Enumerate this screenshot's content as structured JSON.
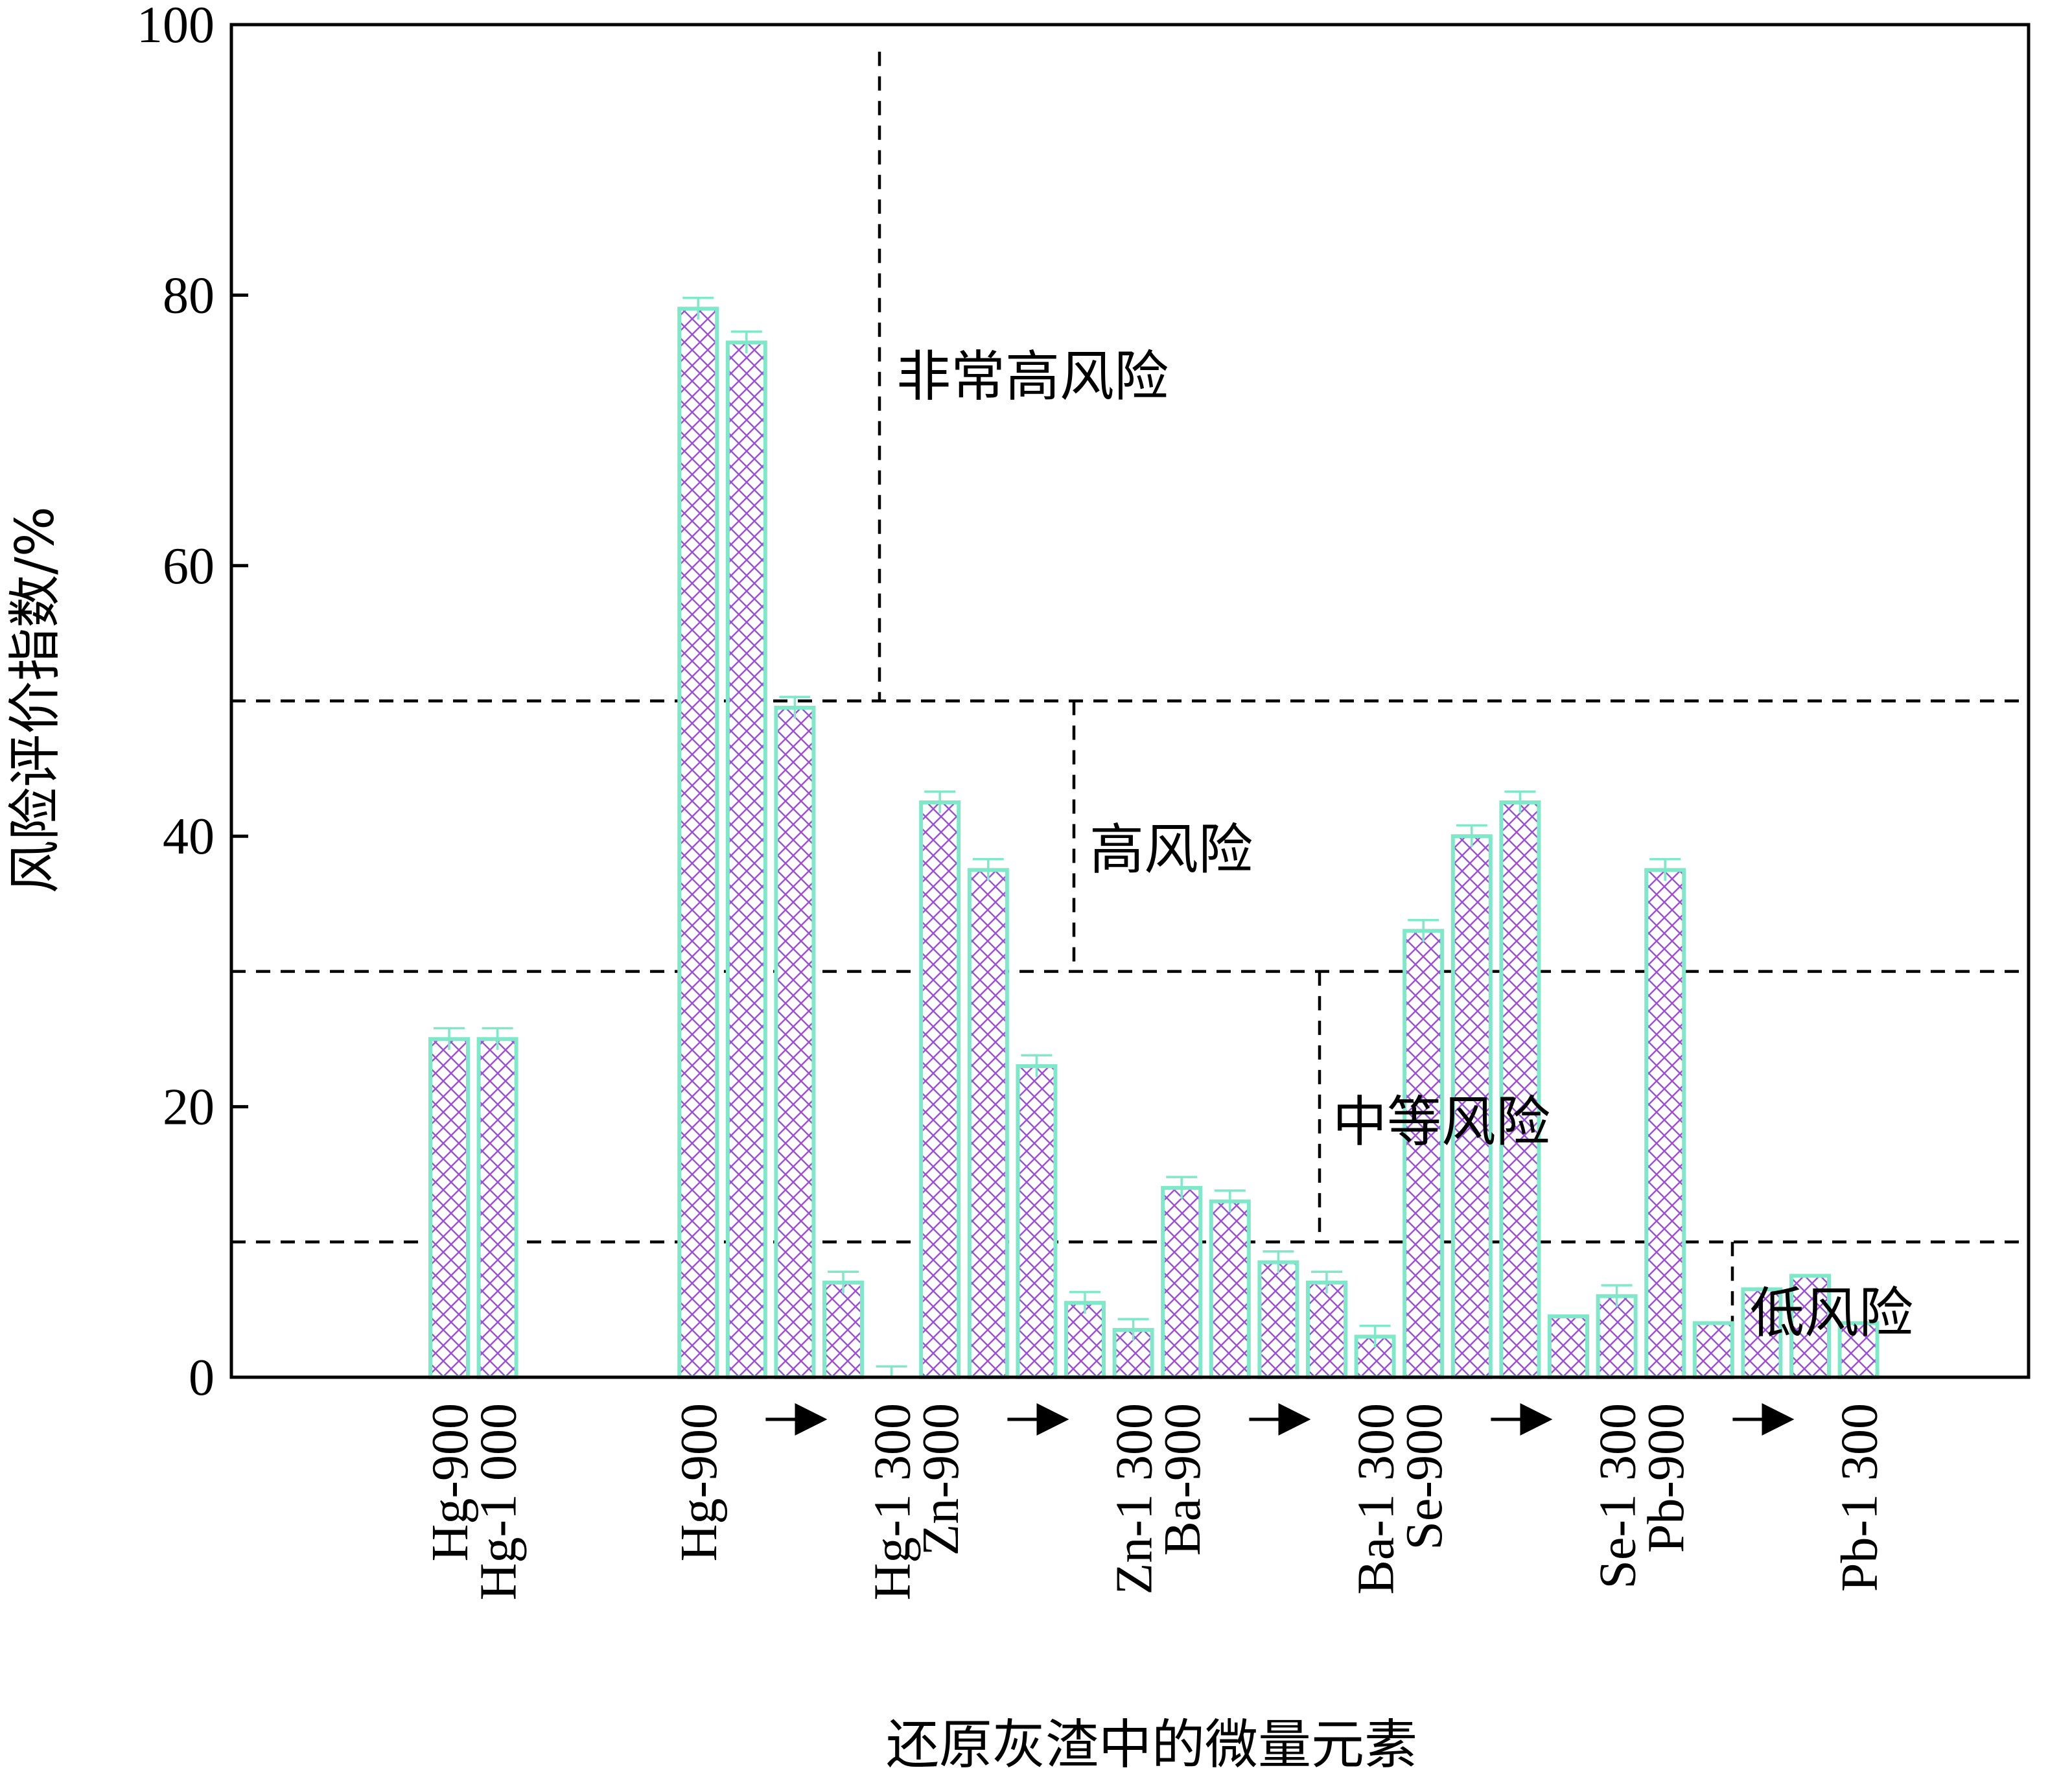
{
  "chart_data": {
    "type": "bar",
    "xlabel": "还原灰渣中的微量元素",
    "ylabel": "风险评价指数/%",
    "ylim": [
      0,
      100
    ],
    "yticks": [
      0,
      20,
      40,
      60,
      80,
      100
    ],
    "grid": false,
    "values": [
      25,
      25,
      79,
      76.5,
      49.5,
      7,
      0,
      42.5,
      37.5,
      23,
      5.5,
      3.5,
      14,
      13,
      8.5,
      7,
      3,
      33,
      40,
      42.5,
      4.5,
      6,
      37.5,
      4,
      6.5,
      7.5,
      4
    ],
    "errors": [
      0.8,
      0.8,
      0.8,
      0.8,
      0.8,
      0.8,
      0.8,
      0.8,
      0.8,
      0.8,
      0.8,
      0.8,
      0.8,
      0.8,
      0.8,
      0.8,
      0.8,
      0.8,
      0.8,
      0.8,
      0,
      0.8,
      0.8,
      0,
      0,
      0,
      0
    ],
    "category_labels": [
      {
        "text": "Hg-900",
        "at_bar": 0
      },
      {
        "text": "Hg-1 000",
        "at_bar": 1
      },
      {
        "text": "Hg-900",
        "at_bar": 2
      },
      {
        "text": "Hg-1 300",
        "at_bar": 6
      },
      {
        "text": "Zn-900",
        "at_bar": 7
      },
      {
        "text": "Zn-1 300",
        "at_bar": 11
      },
      {
        "text": "Ba-900",
        "at_bar": 12
      },
      {
        "text": "Ba-1 300",
        "at_bar": 16
      },
      {
        "text": "Se-900",
        "at_bar": 17
      },
      {
        "text": "Se-1 300",
        "at_bar": 21
      },
      {
        "text": "Pb-900",
        "at_bar": 22
      },
      {
        "text": "Pb-1 300",
        "at_bar": 26
      }
    ],
    "arrows_between": [
      [
        2,
        6
      ],
      [
        7,
        11
      ],
      [
        12,
        16
      ],
      [
        17,
        21
      ],
      [
        22,
        26
      ]
    ],
    "threshold_lines": [
      10,
      30,
      50
    ],
    "zones": [
      {
        "label": "非常高风险",
        "from_y": 50,
        "to_y": 98
      },
      {
        "label": "高风险",
        "from_y": 30,
        "to_y": 50
      },
      {
        "label": "中等风险",
        "from_y": 10,
        "to_y": 30
      },
      {
        "label": "低风险",
        "from_y": 0,
        "to_y": 10
      }
    ],
    "colors": {
      "bar_edge": "#7fe8c8",
      "hatch": "#9b4fd8",
      "axis": "#000000",
      "threshold": "#000000"
    }
  }
}
